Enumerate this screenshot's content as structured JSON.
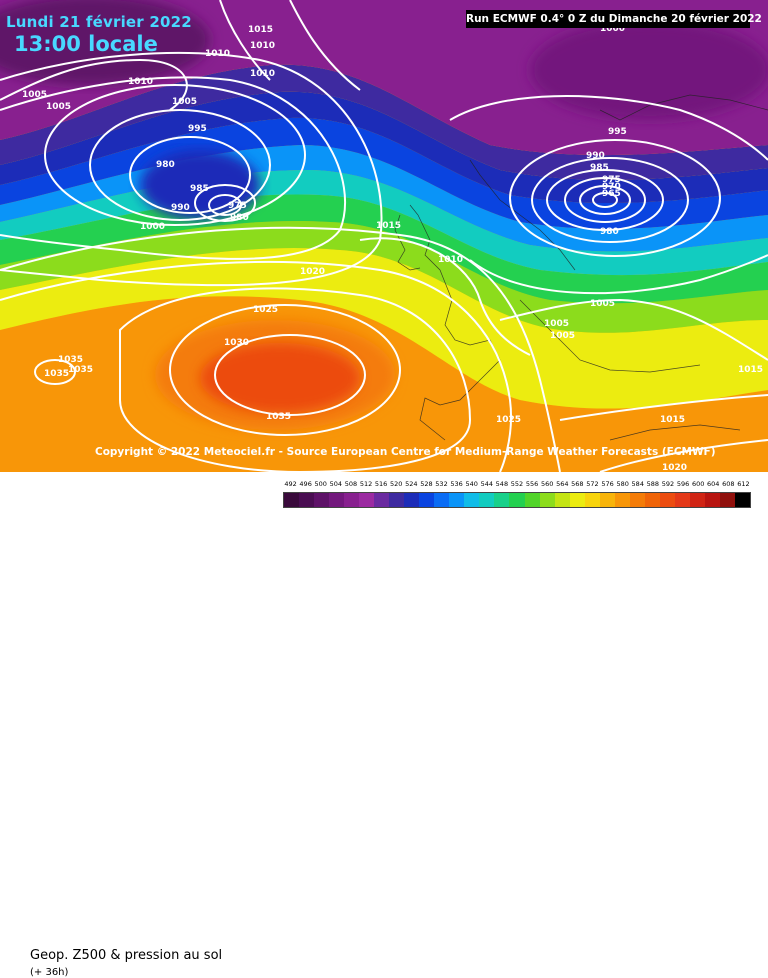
{
  "header": {
    "date": "Lundi 21 février 2022",
    "local_time": "13:00 locale",
    "run": "Run ECMWF 0.4° 0 Z du Dimanche 20 février 2022"
  },
  "copyright": "Copyright © 2022 Meteociel.fr - Source European Centre for Medium-Range Weather Forecasts (ECMWF)",
  "footer": {
    "title": "Geop. Z500 & pression au sol",
    "lead": "(+ 36h)"
  },
  "legend": {
    "ticks": [
      "492",
      "496",
      "500",
      "504",
      "508",
      "512",
      "516",
      "520",
      "524",
      "528",
      "532",
      "536",
      "540",
      "544",
      "548",
      "552",
      "556",
      "560",
      "564",
      "568",
      "572",
      "576",
      "580",
      "584",
      "588",
      "592",
      "596",
      "600",
      "604",
      "608",
      "612"
    ],
    "colors": [
      "#3a0a3c",
      "#4a0d52",
      "#5e1268",
      "#73187d",
      "#88208f",
      "#9b2aa1",
      "#6a2aa0",
      "#3e2aa0",
      "#1c2cb8",
      "#0a44e0",
      "#0a6cf4",
      "#0a94f8",
      "#10bce8",
      "#12ccc0",
      "#18d08a",
      "#24d050",
      "#52d42a",
      "#8cdc1c",
      "#c4e414",
      "#ecec10",
      "#f8d40c",
      "#f8b40a",
      "#f89608",
      "#f47c08",
      "#f06408",
      "#ec4c10",
      "#e43818",
      "#d02414",
      "#b81410",
      "#90100c",
      "#000000"
    ]
  },
  "isobar_labels": [
    {
      "text": "1015"
    },
    {
      "text": "1010"
    },
    {
      "text": "1010"
    },
    {
      "text": "1010"
    },
    {
      "text": "1010"
    },
    {
      "text": "1005"
    },
    {
      "text": "1005"
    },
    {
      "text": "1005"
    },
    {
      "text": "995"
    },
    {
      "text": "980"
    },
    {
      "text": "985"
    },
    {
      "text": "990"
    },
    {
      "text": "975"
    },
    {
      "text": "980"
    },
    {
      "text": "1000"
    },
    {
      "text": "1015"
    },
    {
      "text": "1010"
    },
    {
      "text": "1020"
    },
    {
      "text": "1025"
    },
    {
      "text": "1030"
    },
    {
      "text": "1035"
    },
    {
      "text": "1035"
    },
    {
      "text": "1035"
    },
    {
      "text": "1035"
    },
    {
      "text": "1000"
    },
    {
      "text": "995"
    },
    {
      "text": "990"
    },
    {
      "text": "985"
    },
    {
      "text": "975"
    },
    {
      "text": "970"
    },
    {
      "text": "965"
    },
    {
      "text": "980"
    },
    {
      "text": "1005"
    },
    {
      "text": "1005"
    },
    {
      "text": "1005"
    },
    {
      "text": "1025"
    },
    {
      "text": "1015"
    },
    {
      "text": "1020"
    },
    {
      "text": "1015"
    }
  ]
}
